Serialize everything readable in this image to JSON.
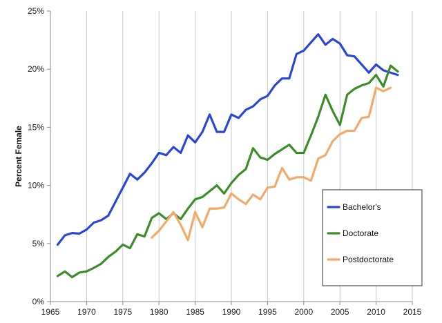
{
  "chart_data": {
    "type": "line",
    "title": "",
    "xlabel": "",
    "ylabel": "Percent Female",
    "xlim": [
      1965,
      2015
    ],
    "ylim": [
      0,
      25
    ],
    "x_ticks": [
      1965,
      1970,
      1975,
      1980,
      1985,
      1990,
      1995,
      2000,
      2005,
      2010,
      2015
    ],
    "y_ticks": [
      0,
      5,
      10,
      15,
      20,
      25
    ],
    "y_tick_labels": [
      "0%",
      "5%",
      "10%",
      "15%",
      "20%",
      "25%"
    ],
    "grid": "vertical",
    "legend_position": "bottom-right",
    "series": [
      {
        "name": "Bachelor's",
        "color": "#2b45d6",
        "points": [
          [
            1966,
            4.9
          ],
          [
            1967,
            5.7
          ],
          [
            1968,
            5.9
          ],
          [
            1969,
            5.85
          ],
          [
            1970,
            6.2
          ],
          [
            1971,
            6.8
          ],
          [
            1972,
            7.0
          ],
          [
            1973,
            7.4
          ],
          [
            1974,
            8.6
          ],
          [
            1975,
            9.8
          ],
          [
            1976,
            11.0
          ],
          [
            1977,
            10.5
          ],
          [
            1978,
            11.1
          ],
          [
            1979,
            11.9
          ],
          [
            1980,
            12.8
          ],
          [
            1981,
            12.6
          ],
          [
            1982,
            13.3
          ],
          [
            1983,
            12.8
          ],
          [
            1984,
            14.3
          ],
          [
            1985,
            13.7
          ],
          [
            1986,
            14.6
          ],
          [
            1987,
            16.1
          ],
          [
            1988,
            14.6
          ],
          [
            1989,
            14.6
          ],
          [
            1990,
            16.1
          ],
          [
            1991,
            15.8
          ],
          [
            1992,
            16.5
          ],
          [
            1993,
            16.8
          ],
          [
            1994,
            17.4
          ],
          [
            1995,
            17.7
          ],
          [
            1996,
            18.6
          ],
          [
            1997,
            19.2
          ],
          [
            1998,
            19.2
          ],
          [
            1999,
            21.3
          ],
          [
            2000,
            21.6
          ],
          [
            2001,
            22.3
          ],
          [
            2002,
            23.0
          ],
          [
            2003,
            22.1
          ],
          [
            2004,
            22.6
          ],
          [
            2005,
            22.2
          ],
          [
            2006,
            21.2
          ],
          [
            2007,
            21.1
          ],
          [
            2008,
            20.4
          ],
          [
            2009,
            19.7
          ],
          [
            2010,
            20.4
          ],
          [
            2011,
            19.9
          ],
          [
            2012,
            19.7
          ],
          [
            2013,
            19.5
          ]
        ]
      },
      {
        "name": "Doctorate",
        "color": "#3c8c2a",
        "points": [
          [
            1966,
            2.2
          ],
          [
            1967,
            2.6
          ],
          [
            1968,
            2.1
          ],
          [
            1969,
            2.5
          ],
          [
            1970,
            2.6
          ],
          [
            1971,
            2.9
          ],
          [
            1972,
            3.25
          ],
          [
            1973,
            3.85
          ],
          [
            1974,
            4.3
          ],
          [
            1975,
            4.9
          ],
          [
            1976,
            4.6
          ],
          [
            1977,
            5.8
          ],
          [
            1978,
            5.6
          ],
          [
            1979,
            7.2
          ],
          [
            1980,
            7.6
          ],
          [
            1981,
            7.1
          ],
          [
            1982,
            7.6
          ],
          [
            1983,
            7.1
          ],
          [
            1984,
            8.0
          ],
          [
            1985,
            8.8
          ],
          [
            1986,
            9.0
          ],
          [
            1987,
            9.5
          ],
          [
            1988,
            10.0
          ],
          [
            1989,
            9.3
          ],
          [
            1990,
            10.2
          ],
          [
            1991,
            10.9
          ],
          [
            1992,
            11.4
          ],
          [
            1993,
            13.2
          ],
          [
            1994,
            12.4
          ],
          [
            1995,
            12.2
          ],
          [
            1996,
            12.7
          ],
          [
            1997,
            13.1
          ],
          [
            1998,
            13.5
          ],
          [
            1999,
            12.8
          ],
          [
            2000,
            12.8
          ],
          [
            2001,
            14.3
          ],
          [
            2002,
            15.9
          ],
          [
            2003,
            17.8
          ],
          [
            2004,
            16.4
          ],
          [
            2005,
            15.2
          ],
          [
            2006,
            17.8
          ],
          [
            2007,
            18.3
          ],
          [
            2008,
            18.6
          ],
          [
            2009,
            18.8
          ],
          [
            2010,
            19.5
          ],
          [
            2011,
            18.5
          ],
          [
            2012,
            20.3
          ],
          [
            2013,
            19.8
          ]
        ]
      },
      {
        "name": "Postdoctorate",
        "color": "#f2a96a",
        "points": [
          [
            1979,
            5.5
          ],
          [
            1980,
            6.1
          ],
          [
            1981,
            6.9
          ],
          [
            1982,
            7.7
          ],
          [
            1983,
            6.6
          ],
          [
            1984,
            5.3
          ],
          [
            1985,
            7.7
          ],
          [
            1986,
            6.4
          ],
          [
            1987,
            8.0
          ],
          [
            1988,
            8.0
          ],
          [
            1989,
            8.1
          ],
          [
            1990,
            9.3
          ],
          [
            1991,
            8.8
          ],
          [
            1992,
            8.4
          ],
          [
            1993,
            9.2
          ],
          [
            1994,
            8.8
          ],
          [
            1995,
            9.8
          ],
          [
            1996,
            9.9
          ],
          [
            1997,
            11.5
          ],
          [
            1998,
            10.5
          ],
          [
            1999,
            10.7
          ],
          [
            2000,
            10.7
          ],
          [
            2001,
            10.4
          ],
          [
            2002,
            12.3
          ],
          [
            2003,
            12.6
          ],
          [
            2004,
            13.8
          ],
          [
            2005,
            14.4
          ],
          [
            2006,
            14.7
          ],
          [
            2007,
            14.7
          ],
          [
            2008,
            15.8
          ],
          [
            2009,
            15.9
          ],
          [
            2010,
            18.4
          ],
          [
            2011,
            18.1
          ],
          [
            2012,
            18.4
          ]
        ]
      }
    ]
  }
}
